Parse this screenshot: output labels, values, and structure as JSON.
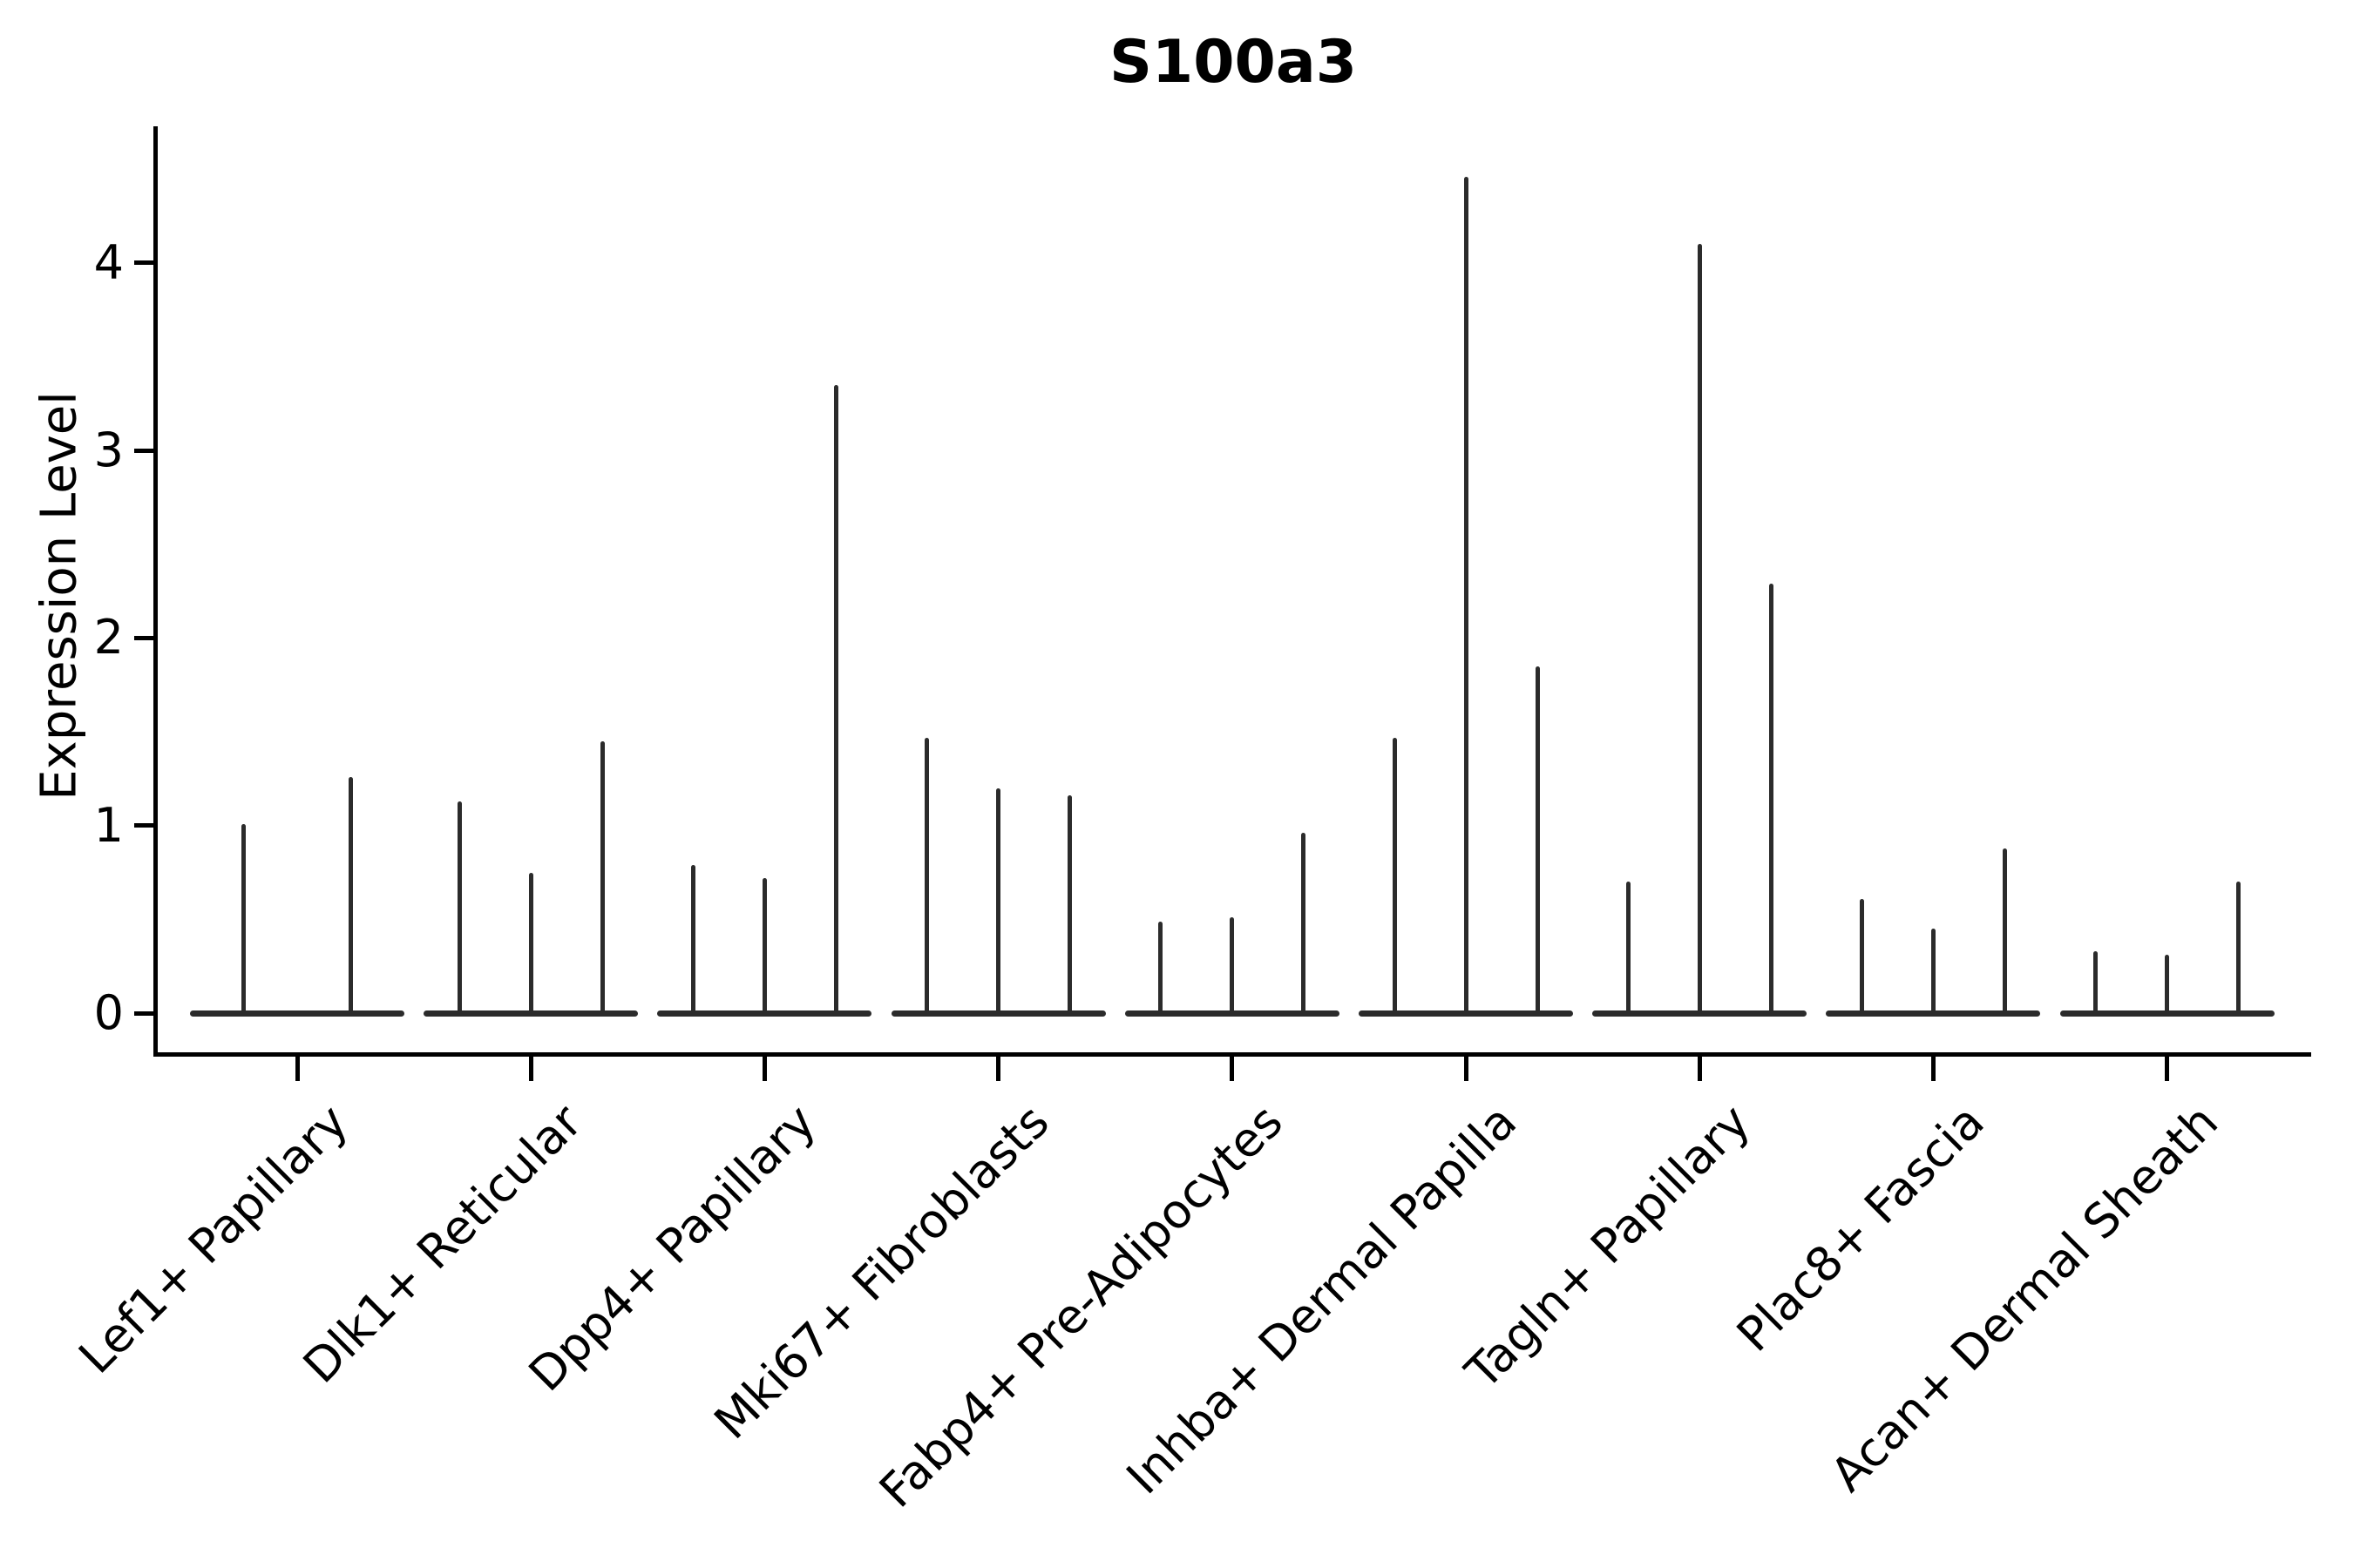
{
  "chart_data": {
    "type": "violin",
    "title": "S100a3",
    "ylabel": "Expression Level",
    "xlabel": "",
    "yticks": [
      0,
      1,
      2,
      3,
      4
    ],
    "ylim": [
      -0.25,
      4.73
    ],
    "grid": false,
    "legend": null,
    "background_color": "#ffffff",
    "axis_color": "#000000",
    "violin_color": "#2b2b2b",
    "categories": [
      "Lef1+ Papillary",
      "Dlk1+ Reticular",
      "Dpp4+ Papillary",
      "Mki67+ Fibroblasts",
      "Fabp4+ Pre-Adipocytes",
      "Inhba+ Dermal Papilla",
      "Tagln+ Papillary",
      "Plac8+ Fascia",
      "Acan+ Dermal Sheath"
    ],
    "violins": [
      {
        "category": "Lef1+ Papillary",
        "spike_maxima": [
          1.01,
          1.26
        ]
      },
      {
        "category": "Dlk1+ Reticular",
        "spike_maxima": [
          1.13,
          0.75,
          1.45
        ]
      },
      {
        "category": "Dpp4+ Papillary",
        "spike_maxima": [
          0.79,
          0.72,
          3.35
        ]
      },
      {
        "category": "Mki67+ Fibroblasts",
        "spike_maxima": [
          1.47,
          1.2,
          1.16
        ]
      },
      {
        "category": "Fabp4+ Pre-Adipocytes",
        "spike_maxima": [
          0.49,
          0.51,
          0.96
        ]
      },
      {
        "category": "Inhba+ Dermal Papilla",
        "spike_maxima": [
          1.47,
          4.46,
          1.85
        ]
      },
      {
        "category": "Tagln+ Papillary",
        "spike_maxima": [
          0.7,
          4.1,
          2.29
        ]
      },
      {
        "category": "Plac8+ Fascia",
        "spike_maxima": [
          0.61,
          0.45,
          0.88
        ]
      },
      {
        "category": "Acan+ Dermal Sheath",
        "spike_maxima": [
          0.33,
          0.31,
          0.7
        ]
      }
    ],
    "baseline_value": 0,
    "note": "Each category shows 2-3 very thin violins flattened at expression 0 with narrow spikes reaching the listed maxima."
  }
}
